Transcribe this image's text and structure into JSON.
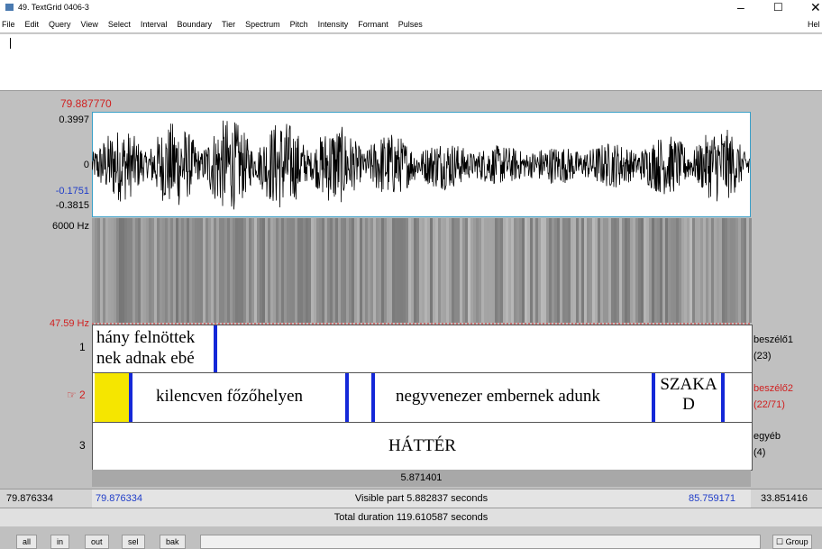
{
  "window": {
    "title": "49. TextGrid 0406-3"
  },
  "menu": [
    "File",
    "Edit",
    "Query",
    "View",
    "Select",
    "Interval",
    "Boundary",
    "Tier",
    "Spectrum",
    "Pitch",
    "Intensity",
    "Formant",
    "Pulses",
    "Hel"
  ],
  "editor": {
    "cursor_time": "79.887770",
    "wave_max": "0.3997",
    "wave_zero": "0",
    "wave_cursor": "-0.1751",
    "wave_min": "-0.3815",
    "spec_max": "6000 Hz",
    "spec_min": "47.59 Hz"
  },
  "tiers": [
    {
      "number": "1",
      "name": "beszélő1",
      "count": "(23)",
      "intervals": [
        [
          "hány felnöttek",
          "nek adnak ebé"
        ]
      ]
    },
    {
      "number": "2",
      "name": "beszélő2",
      "count": "(22/71)",
      "intervals": [
        "kilencven főzőhelyen",
        "negyvenezer embernek adunk",
        [
          "SZAKA",
          "D"
        ]
      ]
    },
    {
      "number": "3",
      "name": "egyéb",
      "count": "(4)",
      "intervals": [
        "HÁTTÉR"
      ]
    }
  ],
  "selection": {
    "duration": "5.871401"
  },
  "visible": {
    "left": "79.876334",
    "start": "79.876334",
    "label": "Visible part 5.882837 seconds",
    "end": "85.759171",
    "right": "33.851416"
  },
  "total": "Total duration 119.610587 seconds",
  "buttons": [
    "all",
    "in",
    "out",
    "sel",
    "bak"
  ],
  "group": "Group"
}
